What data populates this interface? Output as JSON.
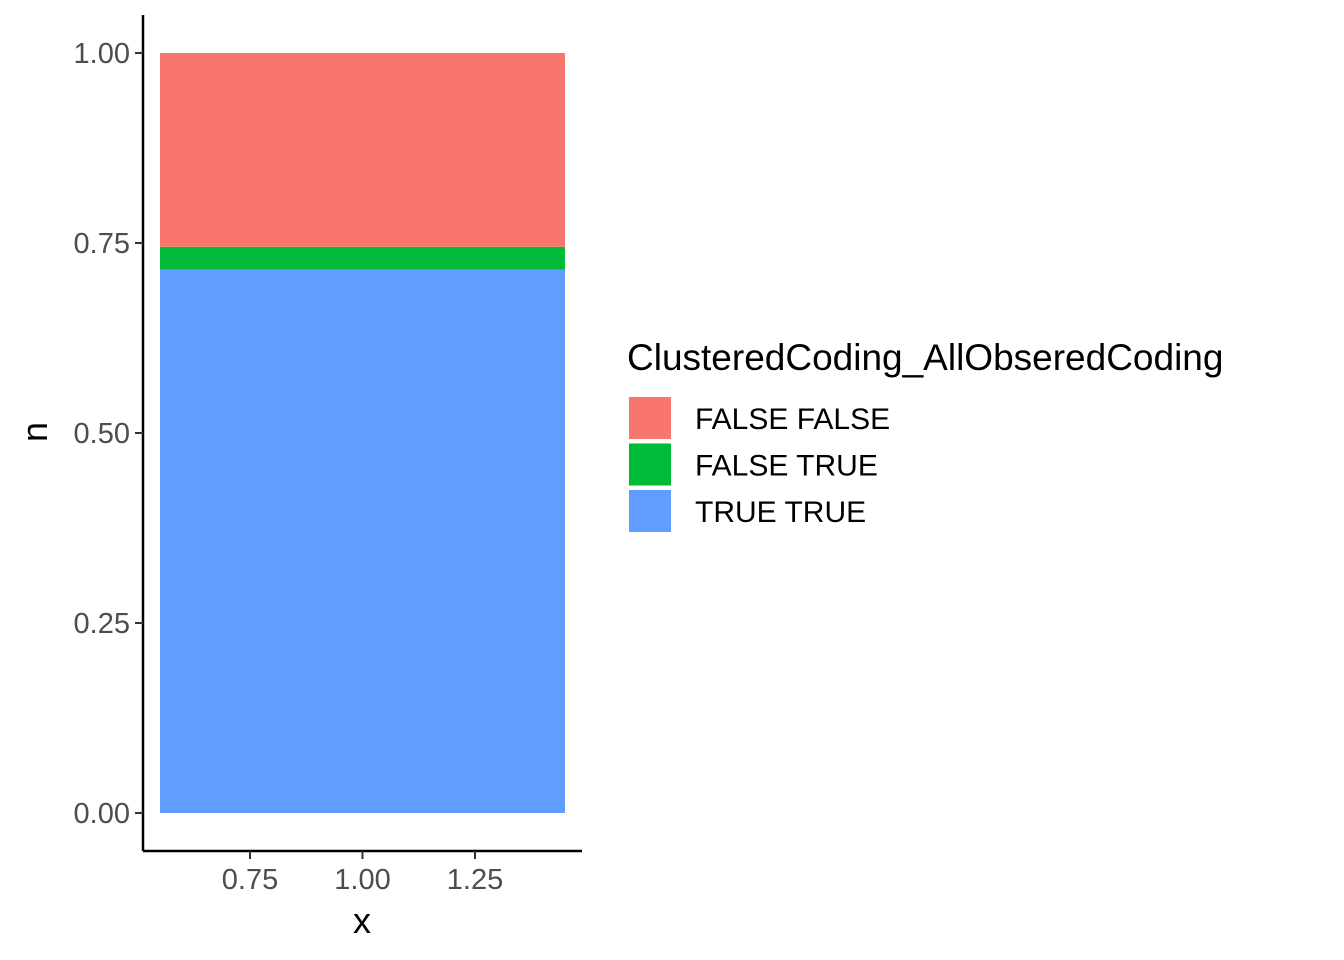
{
  "chart_data": {
    "type": "bar",
    "stacked": true,
    "x": [
      1.0
    ],
    "bar_width": 0.9,
    "xlim": [
      0.5,
      1.5
    ],
    "ylim": [
      0,
      1
    ],
    "xticks": [
      0.75,
      1.0,
      1.25
    ],
    "xtick_labels": [
      "0.75",
      "1.00",
      "1.25"
    ],
    "yticks": [
      0,
      0.25,
      0.5,
      0.75,
      1.0
    ],
    "ytick_labels": [
      "0.00",
      "0.25",
      "0.50",
      "0.75",
      "1.00"
    ],
    "xlabel": "x",
    "ylabel": "n",
    "series": [
      {
        "name": "FALSE FALSE",
        "values": [
          0.255
        ],
        "color": "#F8766D"
      },
      {
        "name": "FALSE TRUE",
        "values": [
          0.03
        ],
        "color": "#00BA38"
      },
      {
        "name": "TRUE TRUE",
        "values": [
          0.715
        ],
        "color": "#619CFF"
      }
    ],
    "stack_order_bottom_to_top": [
      "TRUE TRUE",
      "FALSE TRUE",
      "FALSE FALSE"
    ],
    "legend": {
      "title": "ClusteredCoding_AllObseredCoding",
      "placement": "right"
    },
    "grid": false
  }
}
